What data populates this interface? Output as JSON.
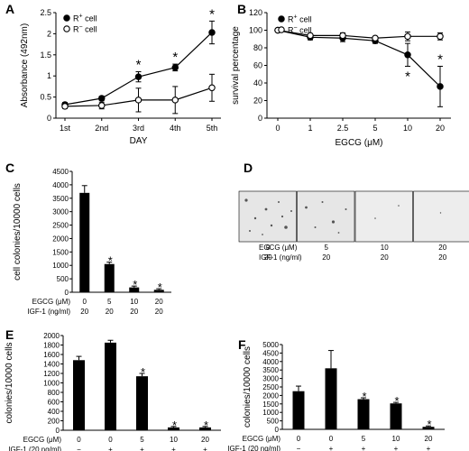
{
  "panels": [
    {
      "id": "A",
      "label": "A"
    },
    {
      "id": "B",
      "label": "B"
    },
    {
      "id": "C",
      "label": "C"
    },
    {
      "id": "D",
      "label": "D"
    },
    {
      "id": "E",
      "label": "E"
    },
    {
      "id": "F",
      "label": "F"
    }
  ],
  "chart_data": [
    {
      "panel": "A",
      "type": "line",
      "x": [
        "1st",
        "2nd",
        "3rd",
        "4th",
        "5th"
      ],
      "series": [
        {
          "name": "R+ cell",
          "marker": "filled",
          "values": [
            0.32,
            0.47,
            0.98,
            1.2,
            2.03
          ],
          "errors": [
            0.05,
            0.05,
            0.12,
            0.08,
            0.27
          ],
          "stars": [
            false,
            false,
            true,
            true,
            true
          ]
        },
        {
          "name": "R− cell",
          "marker": "open",
          "values": [
            0.28,
            0.3,
            0.43,
            0.43,
            0.72
          ],
          "errors": [
            0.05,
            0.08,
            0.28,
            0.32,
            0.32
          ],
          "stars": [
            false,
            false,
            false,
            false,
            false
          ]
        }
      ],
      "xlabel": "DAY",
      "ylabel": "Absorbance (492nm)",
      "ylim": [
        0,
        2.5
      ],
      "yticks": [
        "0",
        "0.5",
        "1",
        "1.5",
        "2",
        "2.5"
      ],
      "legend_placement": "top-left"
    },
    {
      "panel": "B",
      "type": "line",
      "x": [
        "0",
        "1",
        "2.5",
        "5",
        "10",
        "20"
      ],
      "series": [
        {
          "name": "R+ cell",
          "marker": "filled",
          "values": [
            100,
            92,
            91,
            88,
            72,
            36
          ],
          "errors": [
            1.5,
            3,
            4,
            3,
            13,
            23
          ],
          "stars": [
            false,
            false,
            false,
            false,
            true,
            true
          ]
        },
        {
          "name": "R− cell",
          "marker": "open",
          "values": [
            100,
            94,
            94,
            91,
            93,
            93
          ],
          "errors": [
            1.5,
            2,
            3,
            2,
            5,
            4
          ],
          "stars": [
            false,
            false,
            false,
            false,
            false,
            false
          ]
        }
      ],
      "xlabel_prefix": "EGCG (",
      "xlabel_unit": "μM",
      "xlabel_suffix": ")",
      "ylabel": "survival percentage",
      "ylim": [
        0,
        120
      ],
      "yticks": [
        "0",
        "20",
        "40",
        "60",
        "80",
        "100",
        "120"
      ],
      "legend_placement": "top-left"
    },
    {
      "panel": "C",
      "type": "bar",
      "values": [
        3700,
        1050,
        180,
        90
      ],
      "errors": [
        270,
        70,
        50,
        40
      ],
      "stars": [
        false,
        true,
        true,
        true
      ],
      "ylabel": "cell colonies/10000 cells",
      "ylim": [
        0,
        4500
      ],
      "yticks": [
        "0",
        "500",
        "1000",
        "1500",
        "2000",
        "2500",
        "3000",
        "3500",
        "4000",
        "4500"
      ],
      "rows": [
        {
          "label": "EGCG (μM)",
          "values": [
            "0",
            "5",
            "10",
            "20"
          ]
        },
        {
          "label": "IGF-1 (ng/ml)",
          "values": [
            "20",
            "20",
            "20",
            "20"
          ]
        }
      ]
    },
    {
      "panel": "D",
      "type": "image-row",
      "rows": [
        {
          "label": "EGCG (μM)",
          "values": [
            "0",
            "5",
            "10",
            "20"
          ]
        },
        {
          "label": "IGF-1 (ng/ml)",
          "values": [
            "20",
            "20",
            "20",
            "20"
          ]
        }
      ]
    },
    {
      "panel": "E",
      "type": "bar",
      "values": [
        1480,
        1850,
        1140,
        60,
        60
      ],
      "errors": [
        80,
        50,
        60,
        20,
        20
      ],
      "stars": [
        false,
        false,
        true,
        true,
        true
      ],
      "ylabel": "colonies/10000 cells",
      "ylim": [
        0,
        2000
      ],
      "yticks": [
        "0",
        "200",
        "400",
        "600",
        "800",
        "1000",
        "1200",
        "1400",
        "1600",
        "1800",
        "2000"
      ],
      "rows": [
        {
          "label": "EGCG (μM)",
          "values": [
            "0",
            "0",
            "5",
            "10",
            "20"
          ]
        },
        {
          "label": "IGF-1 (20 ng/ml)",
          "values": [
            "−",
            "+",
            "+",
            "+",
            "+"
          ]
        }
      ]
    },
    {
      "panel": "F",
      "type": "bar",
      "values": [
        2250,
        3600,
        1780,
        1530,
        150
      ],
      "errors": [
        300,
        1050,
        80,
        60,
        50
      ],
      "stars": [
        false,
        false,
        true,
        true,
        true
      ],
      "ylabel": "colonies/10000 cells",
      "ylim": [
        0,
        5000
      ],
      "yticks": [
        "0",
        "500",
        "1000",
        "1500",
        "2000",
        "2500",
        "3000",
        "3500",
        "4000",
        "4500",
        "5000"
      ],
      "rows": [
        {
          "label": "EGCG (μM)",
          "values": [
            "0",
            "0",
            "5",
            "10",
            "20"
          ]
        },
        {
          "label": "IGF-1 (20 ng/ml)",
          "values": [
            "−",
            "+",
            "+",
            "+",
            "+"
          ]
        }
      ]
    }
  ],
  "star_symbol": "*"
}
